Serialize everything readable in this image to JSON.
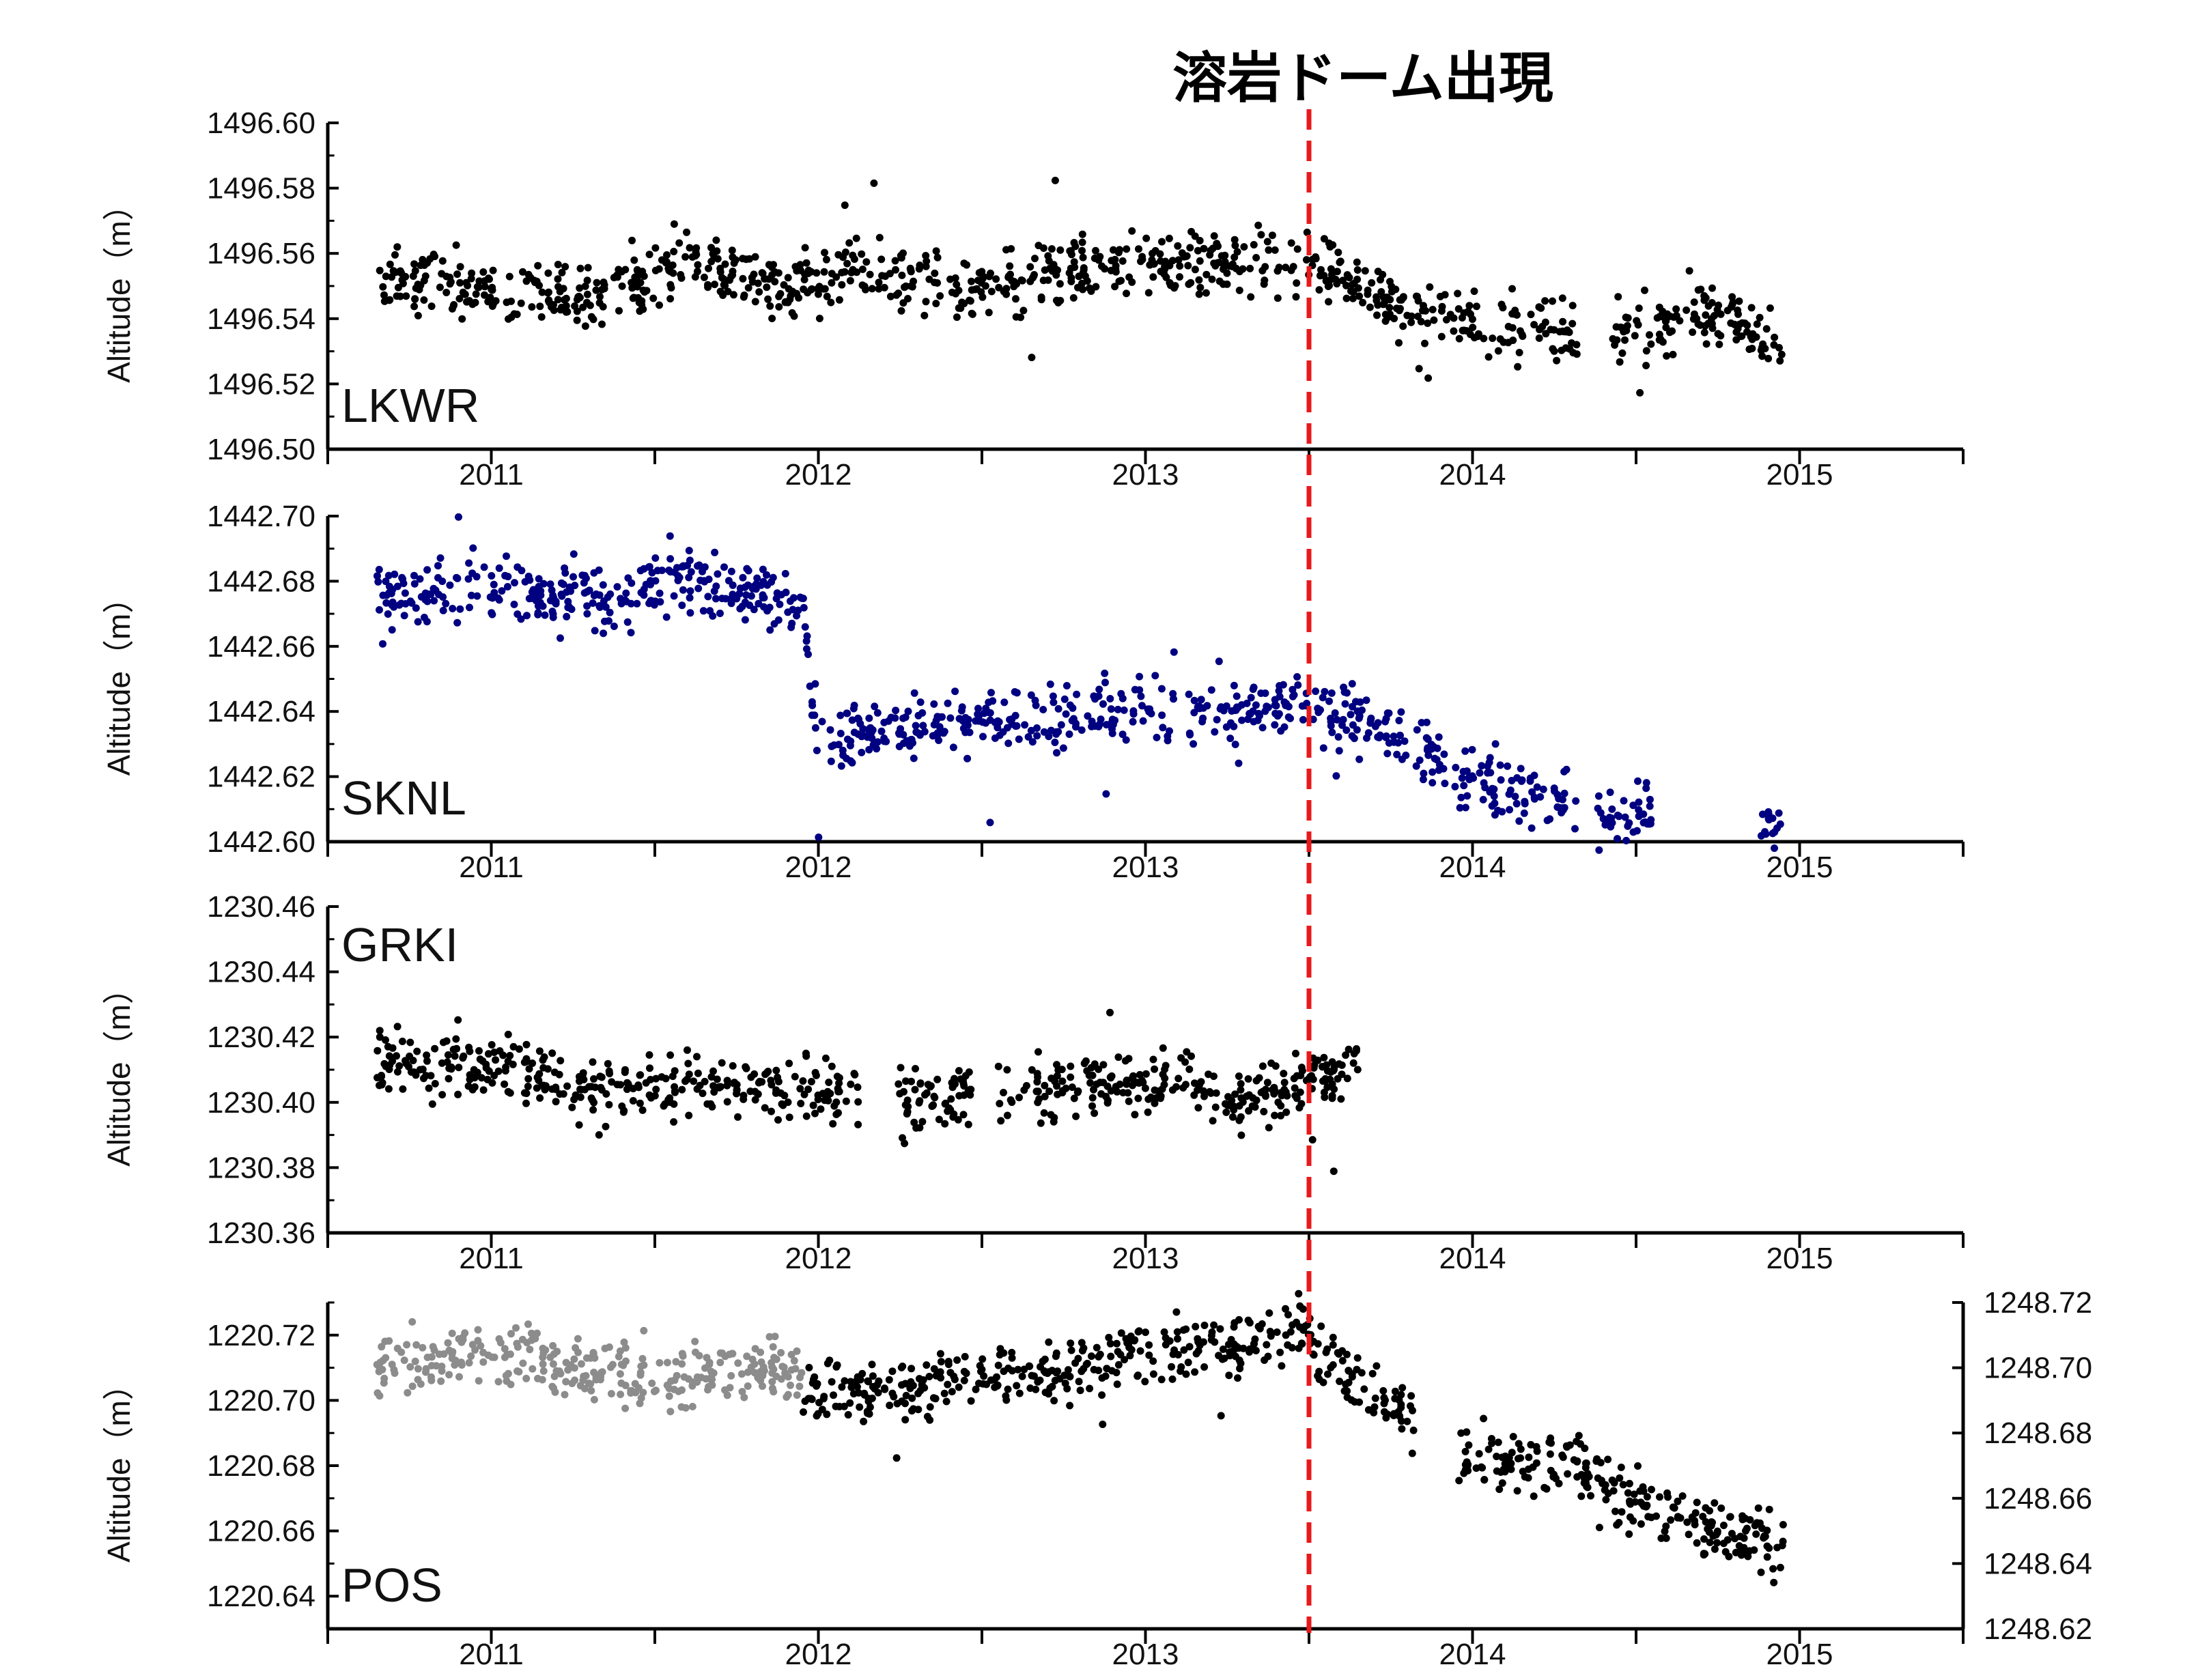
{
  "title": "溶岩ドーム出現",
  "event_marker": {
    "x": 2013.5,
    "color": "#e8191b",
    "style": "dashed"
  },
  "x_ticks": [
    "2011",
    "2012",
    "2013",
    "2014",
    "2015"
  ],
  "chart_data": [
    {
      "type": "scatter",
      "station": "LKWR",
      "ylabel": "Altitude（m）",
      "xlim": [
        2010.5,
        2015.5
      ],
      "ylim": [
        1496.5,
        1496.6
      ],
      "yticks": [
        "1496.50",
        "1496.52",
        "1496.54",
        "1496.56",
        "1496.58",
        "1496.60"
      ],
      "grid": false,
      "series": [
        {
          "color": "#000000",
          "x": [
            2010.65,
            2011.0,
            2011.3,
            2011.6,
            2011.9,
            2012.1,
            2012.4,
            2012.7,
            2013.0,
            2013.3,
            2013.5,
            2013.7,
            2013.95,
            2014.2,
            2014.35,
            2014.5,
            2014.7,
            2014.95
          ],
          "y": [
            1496.551,
            1496.549,
            1496.546,
            1496.557,
            1496.549,
            1496.556,
            1496.548,
            1496.553,
            1496.557,
            1496.556,
            1496.556,
            1496.548,
            1496.54,
            1496.537,
            1496.535,
            1496.535,
            1496.544,
            1496.532
          ],
          "spread": 0.006
        }
      ]
    },
    {
      "type": "scatter",
      "station": "SKNL",
      "ylabel": "Altitude（m）",
      "xlim": [
        2010.5,
        2015.5
      ],
      "ylim": [
        1442.6,
        1442.7
      ],
      "yticks": [
        "1442.60",
        "1442.62",
        "1442.64",
        "1442.66",
        "1442.68",
        "1442.70"
      ],
      "grid": false,
      "series": [
        {
          "color": "#000080",
          "x": [
            2010.65,
            2011.0,
            2011.3,
            2011.6,
            2011.95,
            2012.0,
            2012.3,
            2012.7,
            2013.0,
            2013.3,
            2013.5,
            2013.7,
            2013.95,
            2014.2,
            2014.45,
            2014.95
          ],
          "y": [
            1442.676,
            1442.678,
            1442.675,
            1442.68,
            1442.672,
            1442.632,
            1442.636,
            1442.637,
            1442.64,
            1442.641,
            1442.641,
            1442.635,
            1442.622,
            1442.614,
            1442.607,
            1442.606
          ],
          "spread": 0.006
        }
      ]
    },
    {
      "type": "scatter",
      "station": "GRKI",
      "ylabel": "Altitude（m）",
      "xlim": [
        2010.5,
        2015.5
      ],
      "ylim": [
        1230.36,
        1230.46
      ],
      "yticks": [
        "1230.36",
        "1230.38",
        "1230.40",
        "1230.42",
        "1230.44",
        "1230.46"
      ],
      "grid": false,
      "series": [
        {
          "color": "#000000",
          "x": [
            2010.65,
            2011.0,
            2011.3,
            2011.6,
            2011.9,
            2012.25,
            2012.6,
            2012.9,
            2013.1,
            2013.3,
            2013.5,
            2013.65
          ],
          "y": [
            1230.411,
            1230.413,
            1230.404,
            1230.405,
            1230.404,
            1230.402,
            1230.401,
            1230.406,
            1230.407,
            1230.401,
            1230.406,
            1230.412
          ],
          "spread": 0.006
        }
      ]
    },
    {
      "type": "scatter",
      "station": "POS",
      "ylabel": "Altitude（m）",
      "xlim": [
        2010.5,
        2015.5
      ],
      "ylim": [
        1220.63,
        1220.73
      ],
      "yticks": [
        "1220.64",
        "1220.66",
        "1220.68",
        "1220.70",
        "1220.72"
      ],
      "y2lim": [
        1248.62,
        1248.72
      ],
      "y2ticks": [
        "1248.62",
        "1248.64",
        "1248.66",
        "1248.68",
        "1248.70",
        "1248.72"
      ],
      "grid": false,
      "series": [
        {
          "color": "#8c8c8c",
          "axis": "right",
          "x": [
            2010.65,
            2011.0,
            2011.3,
            2011.55,
            2011.75,
            2011.95
          ],
          "y": [
            1248.7,
            1248.705,
            1248.699,
            1248.696,
            1248.701,
            1248.7
          ],
          "spread": 0.006
        },
        {
          "color": "#000000",
          "axis": "left",
          "x": [
            2011.95,
            2012.2,
            2012.5,
            2012.8,
            2013.1,
            2013.3,
            2013.45,
            2013.6,
            2013.8,
            2014.0,
            2014.3,
            2014.45,
            2014.7,
            2014.95
          ],
          "y": [
            1220.703,
            1220.703,
            1220.707,
            1220.71,
            1220.716,
            1220.716,
            1220.722,
            1220.71,
            1220.695,
            1220.683,
            1220.681,
            1220.67,
            1220.66,
            1220.656
          ],
          "spread": 0.006
        }
      ]
    }
  ]
}
